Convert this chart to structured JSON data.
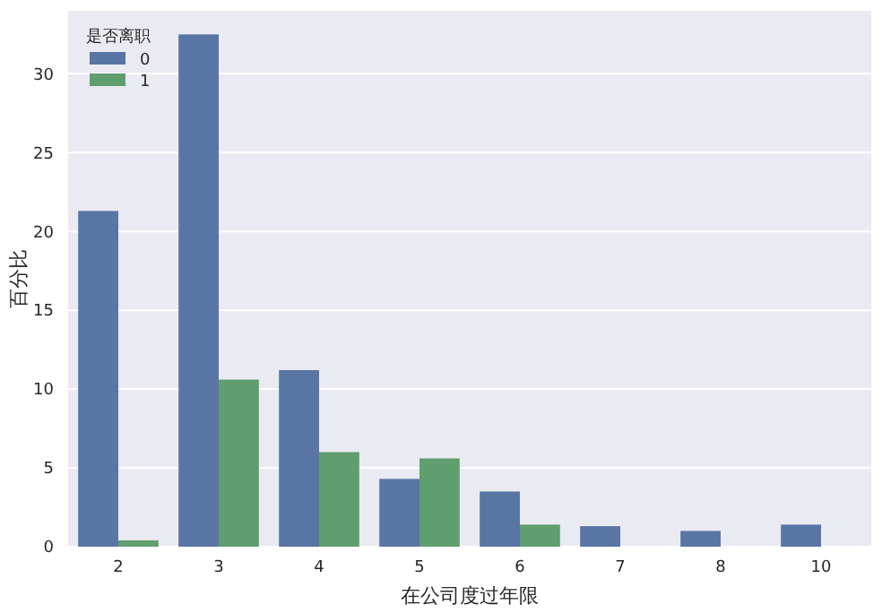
{
  "chart_data": {
    "type": "bar",
    "xlabel": "在公司度过年限",
    "ylabel": "百分比",
    "legend_title": "是否离职",
    "categories": [
      "2",
      "3",
      "4",
      "5",
      "6",
      "7",
      "8",
      "10"
    ],
    "series": [
      {
        "name": "0",
        "color": "#5975a4",
        "values": [
          21.3,
          32.5,
          11.2,
          4.3,
          3.5,
          1.3,
          1.0,
          1.4
        ]
      },
      {
        "name": "1",
        "color": "#5f9e6e",
        "values": [
          0.4,
          10.6,
          6.0,
          5.6,
          1.4,
          null,
          null,
          null
        ]
      }
    ],
    "ylim": [
      0,
      34
    ],
    "yticks": [
      0,
      5,
      10,
      15,
      20,
      25,
      30
    ],
    "grid": "y",
    "legend": "top left"
  }
}
